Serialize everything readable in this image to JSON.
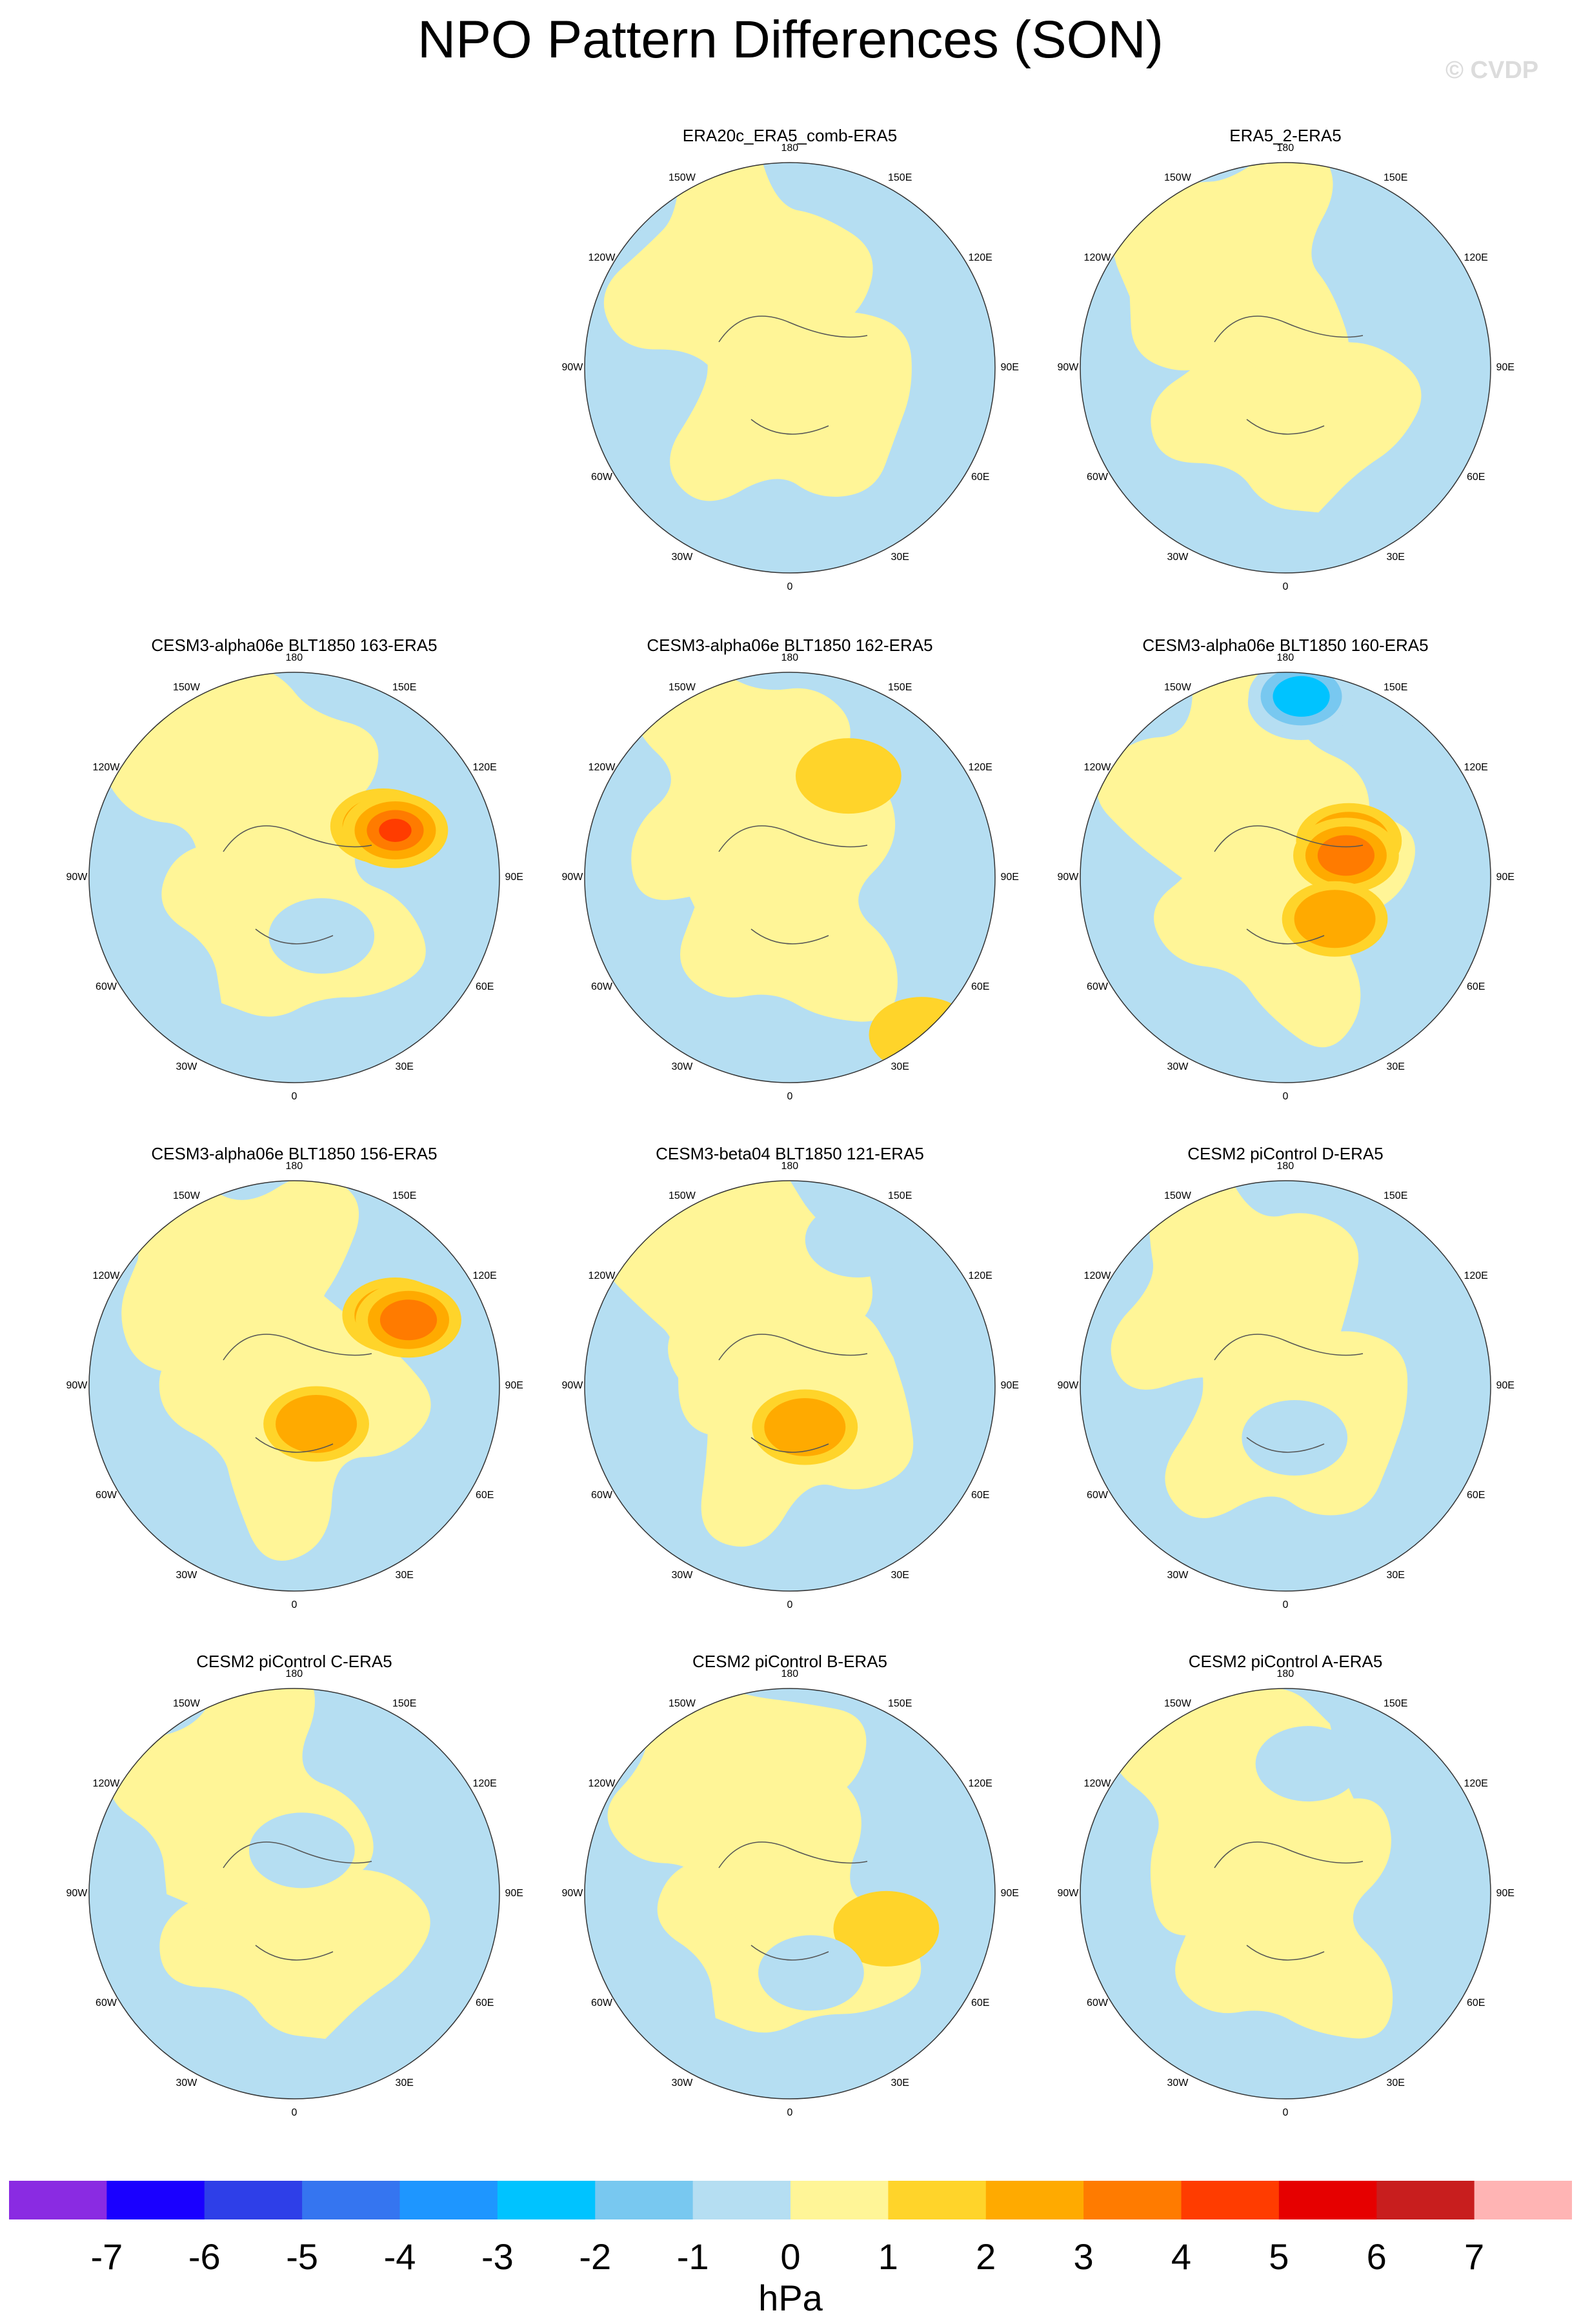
{
  "title": "NPO Pattern Differences (SON)",
  "watermark": "© CVDP",
  "lon_labels": [
    "180",
    "150E",
    "120E",
    "90E",
    "60E",
    "30E",
    "0",
    "30W",
    "60W",
    "90W",
    "120W",
    "150W"
  ],
  "panels": [
    {
      "title": "ERA20c_ERA5_comb-ERA5",
      "anomalies": []
    },
    {
      "title": "ERA5_2-ERA5",
      "anomalies": []
    },
    {
      "title": "CESM3-alpha06e BLT1850 163-ERA5",
      "anomalies": [
        {
          "lon": 120,
          "lat": 55,
          "value": 2
        },
        {
          "lon": 115,
          "lat": 52,
          "value": 4
        },
        {
          "lon": 25,
          "lat": 68,
          "value": -1
        }
      ]
    },
    {
      "title": "CESM3-alpha06e BLT1850 162-ERA5",
      "anomalies": [
        {
          "lon": 150,
          "lat": 50,
          "value": 1
        },
        {
          "lon": 40,
          "lat": 20,
          "value": 1
        }
      ]
    },
    {
      "title": "CESM3-alpha06e BLT1850 160-ERA5",
      "anomalies": [
        {
          "lon": 175,
          "lat": 30,
          "value": -2
        },
        {
          "lon": 175,
          "lat": 28,
          "value": -3
        },
        {
          "lon": 120,
          "lat": 65,
          "value": 2
        },
        {
          "lon": 110,
          "lat": 68,
          "value": 3
        },
        {
          "lon": 50,
          "lat": 68,
          "value": 2
        }
      ]
    },
    {
      "title": "CESM3-alpha06e BLT1850 156-ERA5",
      "anomalies": [
        {
          "lon": 125,
          "lat": 48,
          "value": 2
        },
        {
          "lon": 120,
          "lat": 45,
          "value": 3
        },
        {
          "lon": 30,
          "lat": 75,
          "value": 2
        }
      ]
    },
    {
      "title": "CESM3-beta04 BLT1850 121-ERA5",
      "anomalies": [
        {
          "lon": 155,
          "lat": 35,
          "value": -1
        },
        {
          "lon": 20,
          "lat": 75,
          "value": 2
        }
      ]
    },
    {
      "title": "CESM2 piControl D-ERA5",
      "anomalies": [
        {
          "lon": 10,
          "lat": 72,
          "value": -1
        }
      ]
    },
    {
      "title": "CESM2 piControl C-ERA5",
      "anomalies": [
        {
          "lon": 170,
          "lat": 75,
          "value": -1
        }
      ]
    },
    {
      "title": "CESM2 piControl B-ERA5",
      "anomalies": [
        {
          "lon": 70,
          "lat": 55,
          "value": 1
        },
        {
          "lon": 15,
          "lat": 62,
          "value": -1
        }
      ]
    },
    {
      "title": "CESM2 piControl A-ERA5",
      "anomalies": [
        {
          "lon": 170,
          "lat": 45,
          "value": -1
        }
      ]
    }
  ],
  "colorbar": {
    "ticks": [
      "-7",
      "-6",
      "-5",
      "-4",
      "-3",
      "-2",
      "-1",
      "0",
      "1",
      "2",
      "3",
      "4",
      "5",
      "6",
      "7"
    ],
    "colors": [
      "#8a2be2",
      "#1a00ff",
      "#2e3fe8",
      "#3575f0",
      "#1e96ff",
      "#00c3ff",
      "#78c8f0",
      "#b5def2",
      "#fff597",
      "#ffd42a",
      "#ffaa00",
      "#ff7b00",
      "#ff3c00",
      "#e60000",
      "#c81e1e",
      "#ffb4b4"
    ],
    "units": "hPa"
  }
}
